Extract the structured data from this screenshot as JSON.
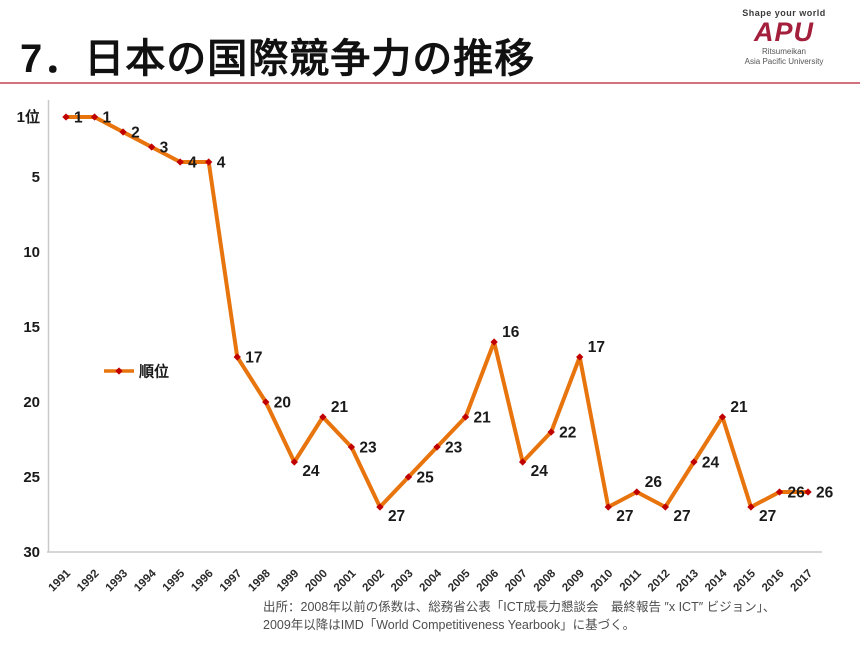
{
  "header": {
    "title": "7．日本の国際競争力の推移",
    "rule_color": "#d4717f",
    "logo": {
      "tagline": "Shape your world",
      "acronym": "APU",
      "acronym_color": "#a31f3c",
      "org_line1": "Ritsumeikan",
      "org_line2": "Asia Pacific University"
    }
  },
  "chart_data": {
    "type": "line",
    "title": "",
    "x": [
      1991,
      1992,
      1993,
      1994,
      1995,
      1996,
      1997,
      1998,
      1999,
      2000,
      2001,
      2002,
      2003,
      2004,
      2005,
      2006,
      2007,
      2008,
      2009,
      2010,
      2011,
      2012,
      2013,
      2014,
      2015,
      2016,
      2017
    ],
    "series": [
      {
        "name": "順位",
        "values": [
          1,
          1,
          2,
          3,
          4,
          4,
          17,
          20,
          24,
          21,
          23,
          27,
          25,
          23,
          21,
          16,
          24,
          22,
          17,
          27,
          26,
          27,
          24,
          21,
          27,
          26,
          26
        ]
      }
    ],
    "y_axis_inverted": true,
    "ylim": [
      1,
      30
    ],
    "y_ticks": [
      {
        "label": "1位",
        "value": 1
      },
      {
        "label": "5",
        "value": 5
      },
      {
        "label": "10",
        "value": 10
      },
      {
        "label": "15",
        "value": 15
      },
      {
        "label": "20",
        "value": 20
      },
      {
        "label": "25",
        "value": 25
      },
      {
        "label": "30",
        "value": 30
      }
    ],
    "grid": false,
    "legend_position": "left-middle",
    "line_color": "#e8740e",
    "marker_color": "#c00000",
    "axis_color": "#c9c9c9",
    "label_color": "#1a1a1a",
    "data_labels_shown": true
  },
  "source": {
    "line1": "出所：2008年以前の係数は、総務省公表「ICT成長力懇談会　最終報告 ″x ICT″ ビジョン」、",
    "line2": "2009年以降はIMD「World Competitiveness Yearbook」に基づく。"
  }
}
